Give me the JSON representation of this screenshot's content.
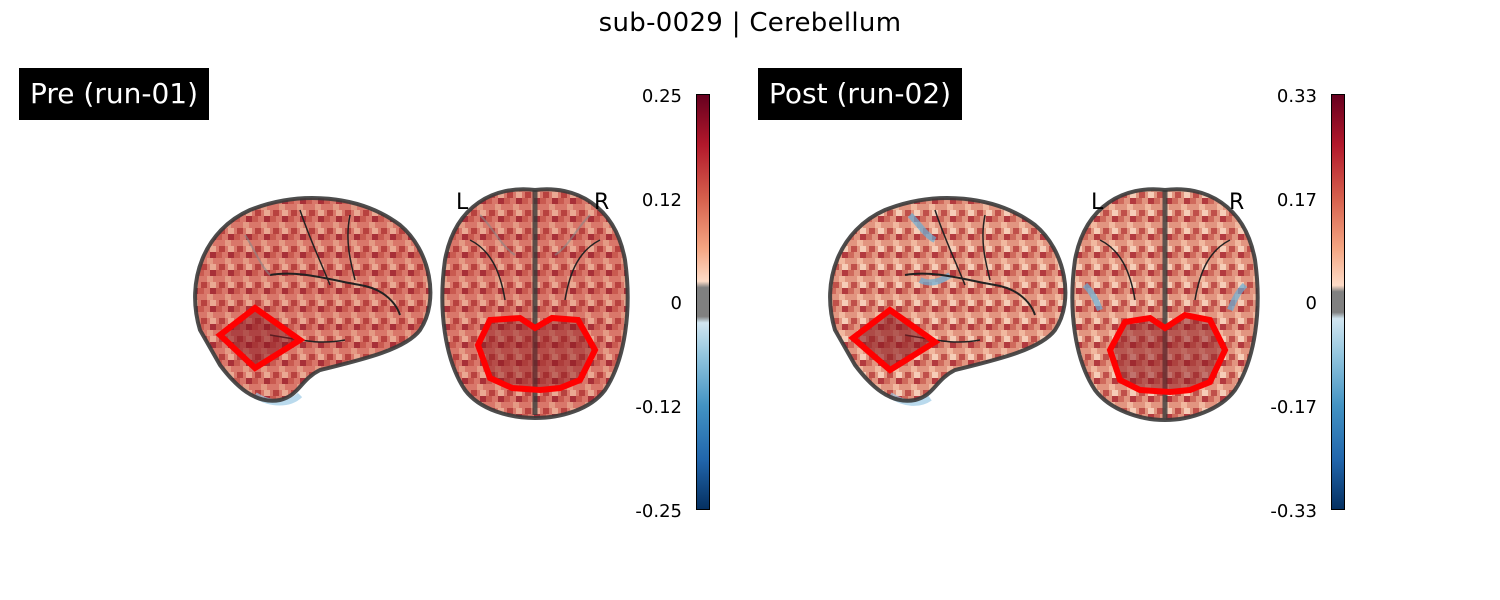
{
  "figure": {
    "title": "sub-0029 | Cerebellum"
  },
  "panels": [
    {
      "label": "Pre (run-01)",
      "left_marker": "L",
      "right_marker": "R",
      "colorbar": {
        "ticks": [
          "0.25",
          "0.12",
          "0",
          "-0.12",
          "-0.25"
        ],
        "range": [
          -0.25,
          0.25
        ]
      },
      "colormap": "RdBu_r",
      "roi_color": "#ff0000"
    },
    {
      "label": "Post (run-02)",
      "left_marker": "L",
      "right_marker": "R",
      "colorbar": {
        "ticks": [
          "0.33",
          "0.17",
          "0",
          "-0.17",
          "-0.33"
        ],
        "range": [
          -0.33,
          0.33
        ]
      },
      "colormap": "RdBu_r",
      "roi_color": "#ff0000"
    }
  ]
}
